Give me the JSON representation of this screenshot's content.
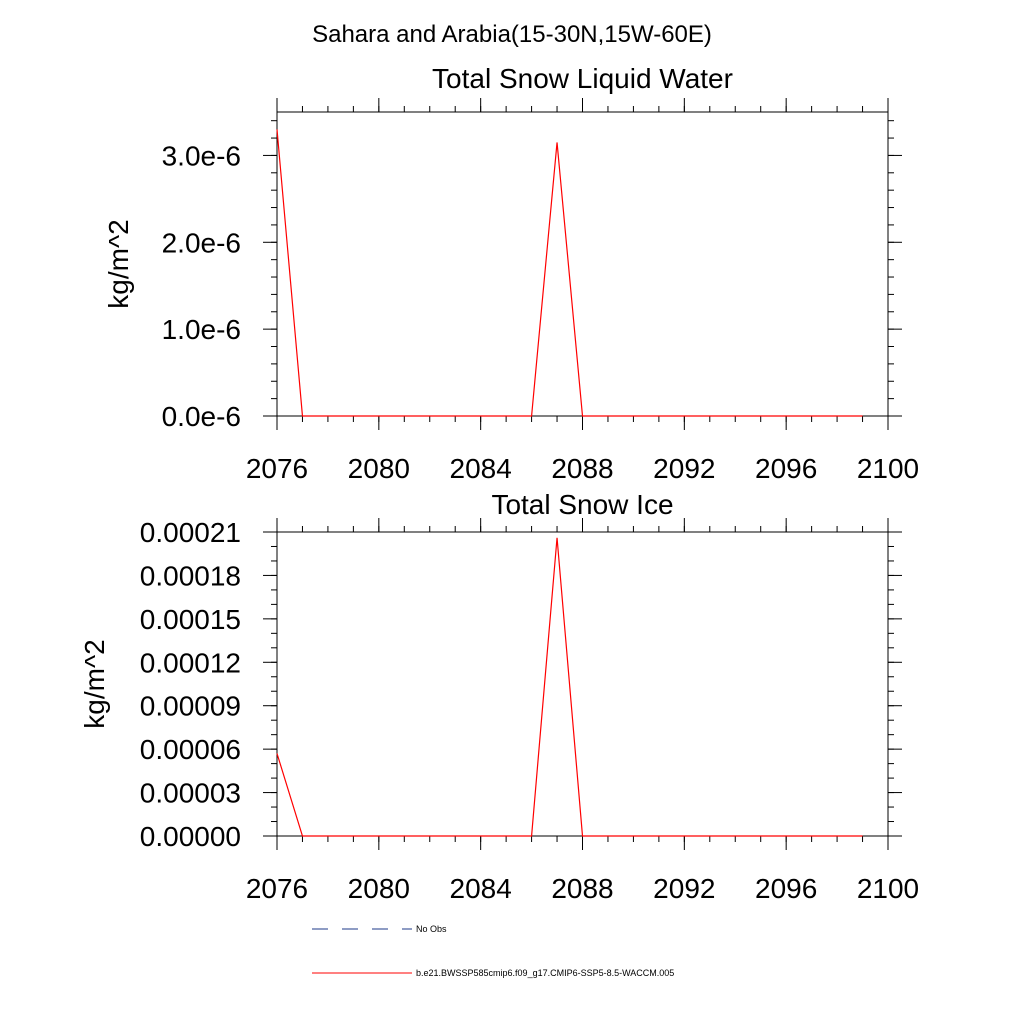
{
  "page_title": "Sahara and Arabia(15-30N,15W-60E)",
  "chart_data": [
    {
      "type": "line",
      "title": "Total Snow Liquid Water",
      "xlabel": "",
      "ylabel": "kg/m^2",
      "xlim": [
        2076,
        2100
      ],
      "ylim": [
        0,
        3.5e-06
      ],
      "x_ticks": [
        2076,
        2080,
        2084,
        2088,
        2092,
        2096,
        2100
      ],
      "y_ticks": [
        0,
        1e-06,
        2e-06,
        3e-06
      ],
      "y_tick_labels": [
        "0.0e-6",
        "1.0e-6",
        "2.0e-6",
        "3.0e-6"
      ],
      "y_minor_step": 2e-07,
      "x_minor_step": 1,
      "grid": false,
      "series": [
        {
          "color": "#ff0000",
          "x": [
            2076,
            2077,
            2078,
            2079,
            2080,
            2081,
            2082,
            2083,
            2084,
            2085,
            2086,
            2087,
            2088,
            2089,
            2090,
            2091,
            2092,
            2093,
            2094,
            2095,
            2096,
            2097,
            2098,
            2099
          ],
          "values": [
            3.3e-06,
            0,
            0,
            0,
            0,
            0,
            0,
            0,
            0,
            0,
            0,
            3.15e-06,
            0,
            0,
            0,
            0,
            0,
            0,
            0,
            0,
            0,
            0,
            0,
            0
          ]
        }
      ]
    },
    {
      "type": "line",
      "title": "Total Snow Ice",
      "xlabel": "",
      "ylabel": "kg/m^2",
      "xlim": [
        2076,
        2100
      ],
      "ylim": [
        0,
        0.00021
      ],
      "x_ticks": [
        2076,
        2080,
        2084,
        2088,
        2092,
        2096,
        2100
      ],
      "y_ticks": [
        0,
        3e-05,
        6e-05,
        9e-05,
        0.00012,
        0.00015,
        0.00018,
        0.00021
      ],
      "y_tick_labels": [
        "0.00000",
        "0.00003",
        "0.00006",
        "0.00009",
        "0.00012",
        "0.00015",
        "0.00018",
        "0.00021"
      ],
      "y_minor_step": 1e-05,
      "x_minor_step": 1,
      "grid": false,
      "series": [
        {
          "color": "#ff0000",
          "x": [
            2076,
            2077,
            2078,
            2079,
            2080,
            2081,
            2082,
            2083,
            2084,
            2085,
            2086,
            2087,
            2088,
            2089,
            2090,
            2091,
            2092,
            2093,
            2094,
            2095,
            2096,
            2097,
            2098,
            2099
          ],
          "values": [
            5.7e-05,
            0,
            0,
            0,
            0,
            0,
            0,
            0,
            0,
            0,
            0,
            0.000206,
            0,
            0,
            0,
            0,
            0,
            0,
            0,
            0,
            0,
            0,
            0,
            0
          ]
        }
      ]
    }
  ],
  "legend": {
    "placement": "bottom",
    "items": [
      {
        "label": "No Obs",
        "color": "#1e3a8a",
        "style": "dashed"
      },
      {
        "label": "b.e21.BWSSP585cmip6.f09_g17.CMIP6-SSP5-8.5-WACCM.005",
        "color": "#ff0000",
        "style": "solid"
      }
    ]
  }
}
